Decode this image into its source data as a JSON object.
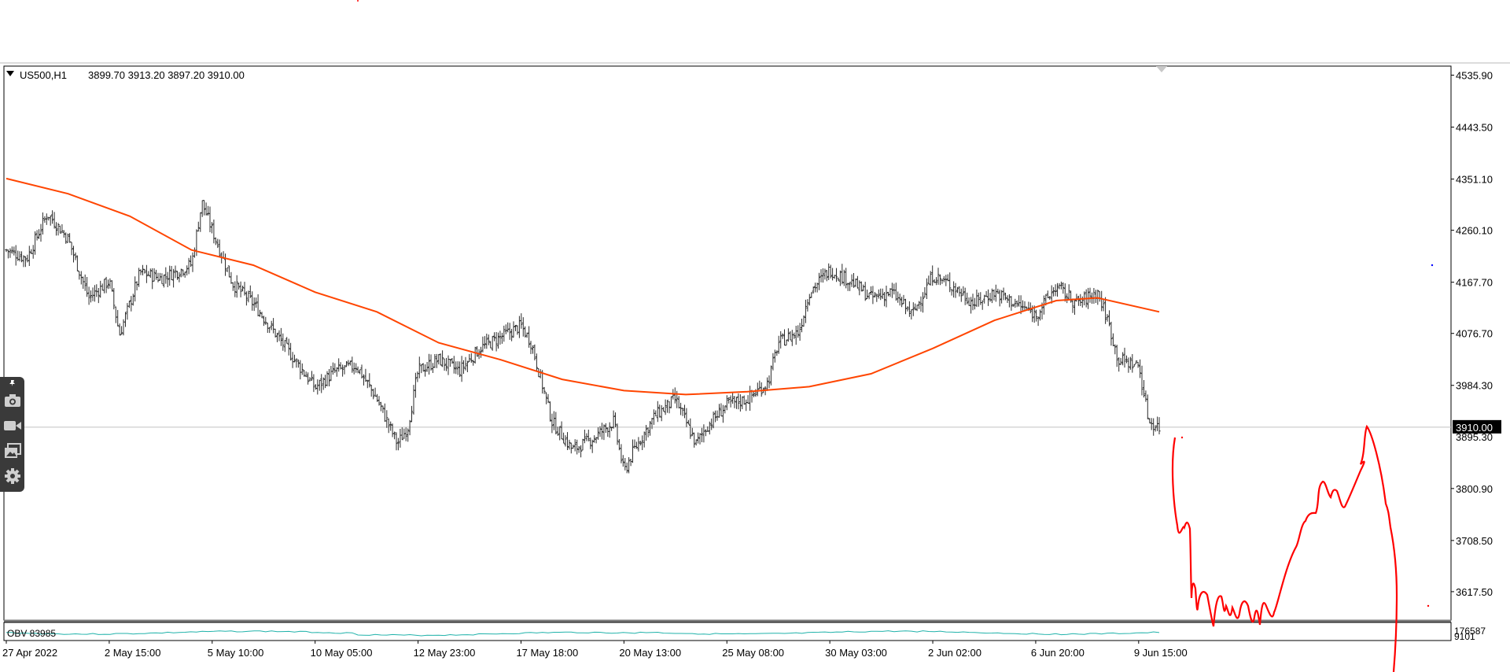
{
  "chart_data": {
    "type": "candlestick-bars",
    "symbol_info": "US500,H1",
    "ohlc": "3899.70 3913.20 3897.20 3910.00",
    "ohlc_values": {
      "open": 3899.7,
      "high": 3913.2,
      "low": 3897.2,
      "close": 3910.0
    },
    "current_price": 3910.0,
    "current_price_label": "3910.00",
    "hidden_price_label": "3895.30",
    "y_ticks": [
      "4535.90",
      "4443.50",
      "4351.10",
      "4260.10",
      "4167.70",
      "4076.70",
      "3984.30",
      "3800.90",
      "3708.50",
      "3617.50"
    ],
    "y_tick_values": [
      4535.9,
      4443.5,
      4351.1,
      4260.1,
      4167.7,
      4076.7,
      3984.3,
      3800.9,
      3708.5,
      3617.5
    ],
    "ylim": [
      3567,
      4552
    ],
    "x_ticks": [
      "27 Apr 2022",
      "2 May 15:00",
      "5 May 10:00",
      "10 May 05:00",
      "12 May 23:00",
      "17 May 18:00",
      "20 May 13:00",
      "25 May 08:00",
      "30 May 03:00",
      "2 Jun 02:00",
      "6 Jun 20:00",
      "9 Jun 15:00"
    ],
    "x_tick_index": [
      0,
      10,
      20,
      30,
      40,
      50,
      60,
      70,
      80,
      90,
      100,
      110
    ],
    "price_path": [
      [
        0,
        4225
      ],
      [
        2,
        4210
      ],
      [
        4,
        4290
      ],
      [
        6,
        4245
      ],
      [
        8,
        4140
      ],
      [
        10,
        4170
      ],
      [
        11,
        4075
      ],
      [
        13,
        4185
      ],
      [
        15,
        4175
      ],
      [
        17,
        4190
      ],
      [
        18,
        4200
      ],
      [
        19,
        4310
      ],
      [
        20,
        4260
      ],
      [
        22,
        4165
      ],
      [
        24,
        4130
      ],
      [
        26,
        4080
      ],
      [
        28,
        4030
      ],
      [
        30,
        3980
      ],
      [
        32,
        4010
      ],
      [
        34,
        4020
      ],
      [
        36,
        3960
      ],
      [
        38,
        3880
      ],
      [
        39,
        3910
      ],
      [
        40,
        4010
      ],
      [
        42,
        4030
      ],
      [
        44,
        4010
      ],
      [
        46,
        4050
      ],
      [
        48,
        4070
      ],
      [
        50,
        4090
      ],
      [
        51,
        4060
      ],
      [
        52,
        3990
      ],
      [
        53,
        3920
      ],
      [
        55,
        3870
      ],
      [
        57,
        3890
      ],
      [
        59,
        3920
      ],
      [
        60,
        3830
      ],
      [
        61,
        3870
      ],
      [
        63,
        3930
      ],
      [
        65,
        3960
      ],
      [
        67,
        3880
      ],
      [
        68,
        3910
      ],
      [
        70,
        3950
      ],
      [
        72,
        3960
      ],
      [
        74,
        3990
      ],
      [
        75,
        4060
      ],
      [
        77,
        4080
      ],
      [
        78,
        4150
      ],
      [
        80,
        4190
      ],
      [
        82,
        4170
      ],
      [
        84,
        4140
      ],
      [
        86,
        4150
      ],
      [
        88,
        4110
      ],
      [
        90,
        4180
      ],
      [
        92,
        4160
      ],
      [
        94,
        4130
      ],
      [
        96,
        4150
      ],
      [
        98,
        4130
      ],
      [
        100,
        4110
      ],
      [
        102,
        4160
      ],
      [
        104,
        4130
      ],
      [
        106,
        4150
      ],
      [
        107,
        4100
      ],
      [
        108,
        4030
      ],
      [
        110,
        4020
      ],
      [
        111,
        3920
      ],
      [
        112,
        3910
      ]
    ],
    "ma_path": [
      [
        0,
        4352
      ],
      [
        6,
        4325
      ],
      [
        12,
        4285
      ],
      [
        18,
        4225
      ],
      [
        24,
        4198
      ],
      [
        30,
        4150
      ],
      [
        36,
        4115
      ],
      [
        42,
        4060
      ],
      [
        48,
        4030
      ],
      [
        54,
        3995
      ],
      [
        60,
        3975
      ],
      [
        66,
        3968
      ],
      [
        72,
        3973
      ],
      [
        78,
        3982
      ],
      [
        84,
        4005
      ],
      [
        90,
        4050
      ],
      [
        96,
        4100
      ],
      [
        102,
        4135
      ],
      [
        106,
        4140
      ],
      [
        112,
        4115
      ]
    ],
    "indicator_label": "OBV 83985",
    "indicator_ticks": [
      "176587",
      "9101"
    ],
    "annotations": "hand-drawn red projection line"
  },
  "toolbar": {
    "icons": [
      "pin-icon",
      "camera-icon",
      "video-icon",
      "gallery-icon",
      "gear-icon"
    ]
  },
  "colors": {
    "bars": "#2b2b2b",
    "moving_average": "#ff4500",
    "obv_line": "#20b2aa",
    "drawing": "#ff0000",
    "current_price_box": "#000000"
  }
}
